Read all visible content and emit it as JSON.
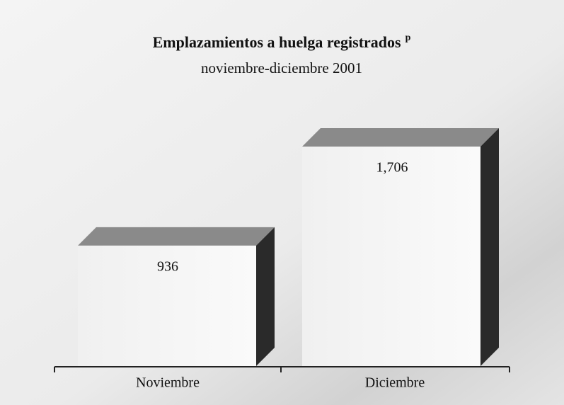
{
  "chart_data": {
    "type": "bar3d",
    "title": "Emplazamientos a huelga registrados",
    "title_note": "p",
    "subtitle": "noviembre-diciembre 2001",
    "categories": [
      "Noviembre",
      "Diciembre"
    ],
    "values": [
      936,
      1706
    ],
    "value_labels": [
      "936",
      "1,706"
    ]
  }
}
